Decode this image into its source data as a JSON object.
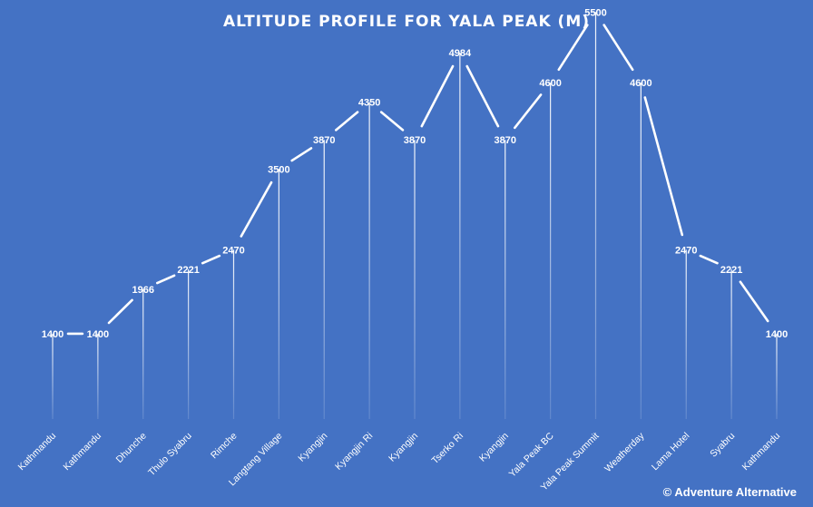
{
  "chart_data": {
    "type": "line",
    "title": "ALTITUDE PROFILE FOR YALA PEAK (M)",
    "categories": [
      "Kathmandu",
      "Kathmandu",
      "Dhunche",
      "Thulo Syabru",
      "Rimche",
      "Langtang Village",
      "Kyangjin",
      "Kyangjin Ri",
      "Kyangjin",
      "Tserko Ri",
      "Kyangjin",
      "Yala Peak BC",
      "Yala Peak Summit",
      "Weatherday",
      "Lama Hotel",
      "Syabru",
      "Kathmandu"
    ],
    "values": [
      1400,
      1400,
      1966,
      2221,
      2470,
      3500,
      3870,
      4350,
      3870,
      4984,
      3870,
      4600,
      5500,
      4600,
      2470,
      2221,
      1400
    ],
    "xlabel": "",
    "ylabel": "",
    "ylim": [
      0,
      6000
    ],
    "grid": false,
    "data_labels": true,
    "line_color": "#FFFFFF",
    "background_color": "#4472C4"
  },
  "credit": "© Adventure Alternative"
}
